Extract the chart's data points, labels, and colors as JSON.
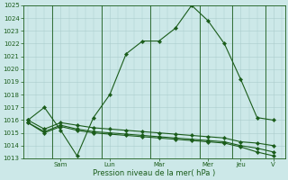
{
  "background_color": "#cce8e8",
  "grid_color": "#aacccc",
  "line_color": "#1a5c1a",
  "marker_color": "#1a5c1a",
  "xlabel": "Pression niveau de la mer( hPa )",
  "ylim": [
    1013,
    1025
  ],
  "xlim": [
    -0.3,
    15.7
  ],
  "day_labels": [
    "Sam",
    "Lun",
    "Mar",
    "Mer",
    "Jeu",
    "V"
  ],
  "day_tick_positions": [
    2.0,
    5.0,
    8.0,
    11.0,
    13.0,
    15.0
  ],
  "day_vline_positions": [
    1.5,
    4.5,
    7.5,
    10.5,
    12.5,
    14.5
  ],
  "series": [
    {
      "x": [
        0,
        1,
        2,
        3,
        4,
        5,
        6,
        7,
        8,
        9,
        10,
        11,
        12,
        13,
        14,
        15
      ],
      "y": [
        1016.0,
        1017.0,
        1015.2,
        1013.2,
        1016.2,
        1018.0,
        1021.2,
        1022.2,
        1022.2,
        1023.2,
        1025.0,
        1023.8,
        1022.0,
        1019.2,
        1016.2,
        1016.0
      ]
    },
    {
      "x": [
        0,
        1,
        2,
        3,
        4,
        5,
        6,
        7,
        8,
        9,
        10,
        11,
        12,
        13,
        14,
        15
      ],
      "y": [
        1016.0,
        1015.3,
        1015.8,
        1015.6,
        1015.4,
        1015.3,
        1015.2,
        1015.1,
        1015.0,
        1014.9,
        1014.8,
        1014.7,
        1014.6,
        1014.3,
        1014.2,
        1014.0
      ]
    },
    {
      "x": [
        0,
        1,
        2,
        3,
        4,
        5,
        6,
        7,
        8,
        9,
        10,
        11,
        12,
        13,
        14,
        15
      ],
      "y": [
        1015.8,
        1015.1,
        1015.6,
        1015.3,
        1015.1,
        1015.0,
        1014.9,
        1014.8,
        1014.7,
        1014.6,
        1014.5,
        1014.4,
        1014.3,
        1014.0,
        1013.8,
        1013.5
      ]
    },
    {
      "x": [
        0,
        1,
        2,
        3,
        4,
        5,
        6,
        7,
        8,
        9,
        10,
        11,
        12,
        13,
        14,
        15
      ],
      "y": [
        1015.8,
        1015.0,
        1015.5,
        1015.2,
        1015.0,
        1014.9,
        1014.8,
        1014.7,
        1014.6,
        1014.5,
        1014.4,
        1014.3,
        1014.2,
        1013.9,
        1013.5,
        1013.2
      ]
    }
  ],
  "title_fontsize": 6,
  "tick_fontsize": 5,
  "xlabel_fontsize": 6,
  "linewidth": 0.8,
  "markersize": 2.2
}
